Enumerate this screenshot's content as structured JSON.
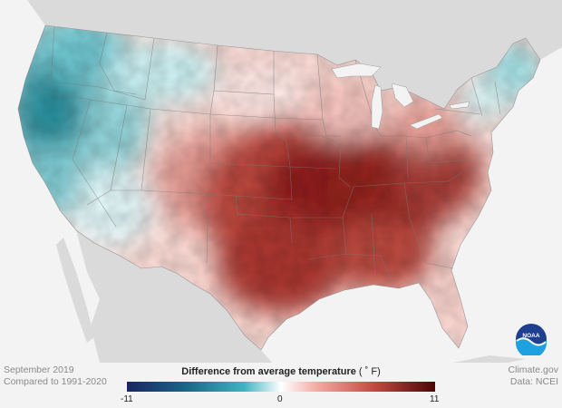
{
  "map": {
    "date_label": "September 2019",
    "baseline_label": "Compared to 1991-2020",
    "source_site": "Climate.gov",
    "source_data": "Data: NCEI",
    "logo_text": "NOAA",
    "colors": {
      "background": "#f3f3f3",
      "land_outside": "#dadada",
      "state_borders": "#7a7a7a",
      "cold_extreme": "#1a2460",
      "neutral": "#ffffff",
      "warm_extreme": "#4a0606"
    }
  },
  "legend": {
    "title": "Difference from average temperature",
    "unit": "( ˚ F)",
    "min_label": "-11",
    "mid_label": "0",
    "max_label": "11",
    "range": [
      -11,
      11
    ]
  }
}
